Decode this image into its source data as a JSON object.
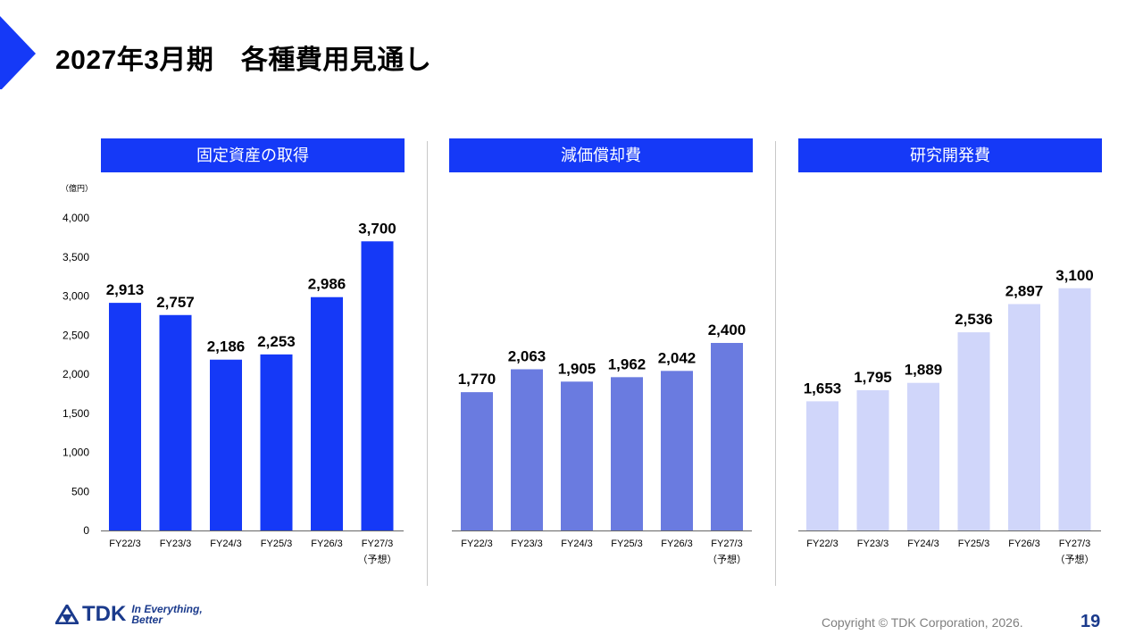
{
  "slide": {
    "title": "2027年3月期　各種費用見通し",
    "page_number": "19",
    "copyright": "Copyright © TDK Corporation, 2026.",
    "logo_text": "TDK",
    "tagline_line1": "In Everything,",
    "tagline_line2": "Better"
  },
  "colors": {
    "header_bg": "#1539f7",
    "accent": "#1539f7",
    "highlight_label": "#1a3a9c"
  },
  "chart_data": [
    {
      "type": "bar",
      "title": "固定資産の取得",
      "unit": "（億円）",
      "categories": [
        "FY22/3",
        "FY23/3",
        "FY24/3",
        "FY25/3",
        "FY26/3",
        "FY27/3"
      ],
      "category_sublabels": [
        "",
        "",
        "",
        "",
        "",
        "（予想）"
      ],
      "values": [
        2913,
        2757,
        2186,
        2253,
        2986,
        3700
      ],
      "value_labels": [
        "2,913",
        "2,757",
        "2,186",
        "2,253",
        "2,986",
        "3,700"
      ],
      "bar_color": "#1539f7",
      "ylim": [
        0,
        4000
      ],
      "yticks": [
        0,
        500,
        1000,
        1500,
        2000,
        2500,
        3000,
        3500,
        4000
      ],
      "ytick_labels": [
        "0",
        "500",
        "1,000",
        "1,500",
        "2,000",
        "2,500",
        "3,000",
        "3,500",
        "4,000"
      ]
    },
    {
      "type": "bar",
      "title": "減価償却費",
      "categories": [
        "FY22/3",
        "FY23/3",
        "FY24/3",
        "FY25/3",
        "FY26/3",
        "FY27/3"
      ],
      "category_sublabels": [
        "",
        "",
        "",
        "",
        "",
        "（予想）"
      ],
      "values": [
        1770,
        2063,
        1905,
        1962,
        2042,
        2400
      ],
      "value_labels": [
        "1,770",
        "2,063",
        "1,905",
        "1,962",
        "2,042",
        "2,400"
      ],
      "bar_color": "#6a7be0",
      "ylim": [
        0,
        4000
      ]
    },
    {
      "type": "bar",
      "title": "研究開発費",
      "categories": [
        "FY22/3",
        "FY23/3",
        "FY24/3",
        "FY25/3",
        "FY26/3",
        "FY27/3"
      ],
      "category_sublabels": [
        "",
        "",
        "",
        "",
        "",
        "（予想）"
      ],
      "values": [
        1653,
        1795,
        1889,
        2536,
        2897,
        3100
      ],
      "value_labels": [
        "1,653",
        "1,795",
        "1,889",
        "2,536",
        "2,897",
        "3,100"
      ],
      "bar_color": "#d0d6fa",
      "ylim": [
        0,
        4000
      ]
    }
  ]
}
